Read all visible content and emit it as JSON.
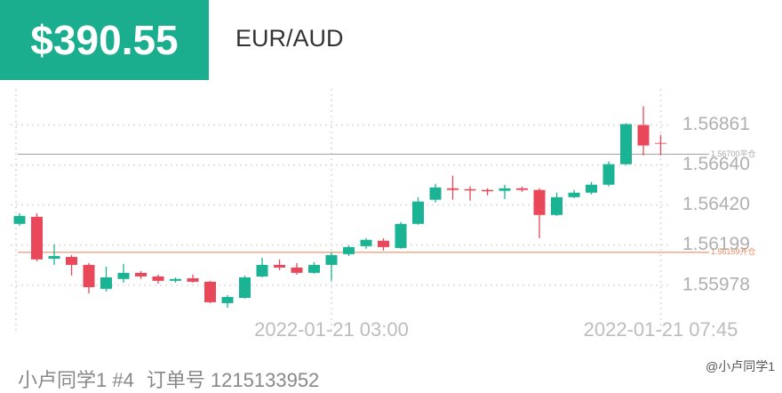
{
  "header": {
    "price": "$390.55",
    "pair": "EUR/AUD"
  },
  "chart_data": {
    "type": "candlestick",
    "categories": [
      null,
      null,
      null,
      null,
      null,
      null,
      null,
      null,
      null,
      null,
      null,
      null,
      null,
      null,
      null,
      null,
      null,
      null,
      "2022-01-21 03:00",
      null,
      null,
      null,
      null,
      null,
      null,
      null,
      null,
      null,
      null,
      null,
      null,
      null,
      null,
      null,
      null,
      null,
      null,
      "2022-01-21 07:45"
    ],
    "open": [
      1.56316,
      1.56355,
      1.56124,
      1.56134,
      1.5609,
      1.55958,
      1.56012,
      1.56046,
      1.56026,
      1.56002,
      1.56016,
      1.55997,
      1.55879,
      1.55908,
      1.56026,
      1.5609,
      1.56075,
      1.56046,
      1.5609,
      1.56149,
      1.56193,
      1.56223,
      1.56183,
      1.56316,
      1.56449,
      1.56512,
      1.56507,
      1.56503,
      1.56498,
      1.56512,
      1.56503,
      1.56365,
      1.56463,
      1.56488,
      1.56532,
      1.56645,
      1.56861,
      1.56763
    ],
    "high": [
      1.56375,
      1.56375,
      1.56203,
      1.56144,
      1.561,
      1.5608,
      1.56095,
      1.56056,
      1.56036,
      1.56021,
      1.56036,
      1.56002,
      1.55923,
      1.56031,
      1.56129,
      1.5612,
      1.561,
      1.56105,
      1.56159,
      1.56198,
      1.56237,
      1.56237,
      1.56326,
      1.56463,
      1.56537,
      1.56581,
      1.56522,
      1.56512,
      1.56532,
      1.56522,
      1.56512,
      1.56488,
      1.56503,
      1.56547,
      1.5666,
      1.56871,
      1.56964,
      1.56807
    ],
    "low": [
      1.56306,
      1.5611,
      1.5609,
      1.56031,
      1.55933,
      1.55943,
      1.55992,
      1.56012,
      1.55987,
      1.55992,
      1.55992,
      1.55879,
      1.55854,
      1.55904,
      1.56021,
      1.56061,
      1.56036,
      1.56041,
      1.56002,
      1.56139,
      1.56179,
      1.56169,
      1.56179,
      1.56311,
      1.56434,
      1.56449,
      1.56444,
      1.56473,
      1.56453,
      1.56493,
      1.56237,
      1.5636,
      1.56458,
      1.56478,
      1.56522,
      1.5664,
      1.56694,
      1.56694
    ],
    "close": [
      1.5636,
      1.5612,
      1.56139,
      1.5609,
      1.55967,
      1.56021,
      1.56046,
      1.56026,
      1.56002,
      1.56012,
      1.55997,
      1.55884,
      1.55913,
      1.56021,
      1.5609,
      1.56075,
      1.56046,
      1.5609,
      1.56144,
      1.56188,
      1.56228,
      1.56188,
      1.56316,
      1.56439,
      1.56517,
      1.56503,
      1.56503,
      1.56498,
      1.56512,
      1.56503,
      1.56365,
      1.56463,
      1.56488,
      1.56532,
      1.56645,
      1.56866,
      1.56748,
      1.56758
    ],
    "up_color": "#1ab394",
    "down_color": "#e8485a",
    "ylim": [
      1.5581,
      1.5706
    ],
    "yticks": [
      1.56861,
      {
        "value": 1.5664,
        "label": "1.56640"
      },
      {
        "value": 1.5642,
        "label": "1.56420"
      },
      1.56199,
      1.55978
    ],
    "grid": true,
    "reference_lines": [
      {
        "value": 1.567,
        "label": "1.56700平仓",
        "color": "#aaaaaa"
      },
      {
        "value": 1.56159,
        "label": "1.56159开仓",
        "color": "#f08c64"
      }
    ]
  },
  "footer": {
    "user": "小卢同学1 #4",
    "order": "订单号 1215133952",
    "watermark": "@小卢同学1"
  }
}
